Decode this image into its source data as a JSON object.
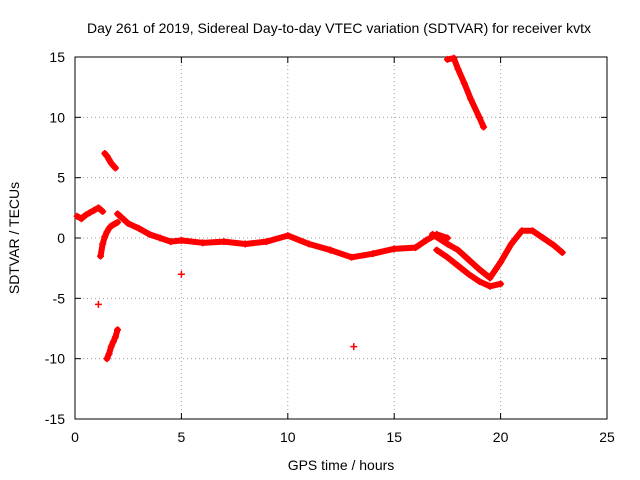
{
  "chart_data": {
    "type": "scatter",
    "title": "Day 261 of 2019, Sidereal Day-to-day VTEC variation (SDTVAR) for receiver kvtx",
    "xlabel": "GPS time / hours",
    "ylabel": "SDTVAR / TECUs",
    "xlim": [
      0,
      25
    ],
    "ylim": [
      -15,
      15
    ],
    "xticks": [
      0,
      5,
      10,
      15,
      20,
      25
    ],
    "yticks": [
      -15,
      -10,
      -5,
      0,
      5,
      10,
      15
    ],
    "xtick_labels": [
      "0",
      "5",
      "10",
      "15",
      "20",
      "25"
    ],
    "ytick_labels": [
      "-15",
      "-10",
      "-5",
      "0",
      "5",
      "10",
      "15"
    ],
    "grid": true,
    "marker": "+",
    "series_color": "#ff0000",
    "series": [
      {
        "name": "seg-early-band",
        "x": [
          0.1,
          0.3,
          0.5,
          0.7,
          0.9,
          1.1,
          1.3
        ],
        "y": [
          1.8,
          1.6,
          1.9,
          2.1,
          2.3,
          2.5,
          2.2
        ]
      },
      {
        "name": "seg-rising-arc",
        "x": [
          1.2,
          1.3,
          1.4,
          1.5,
          1.6,
          1.7,
          1.8,
          1.9,
          2.0
        ],
        "y": [
          -1.5,
          -0.5,
          0.1,
          0.5,
          0.8,
          1.0,
          1.1,
          1.2,
          1.3
        ]
      },
      {
        "name": "seg-upper-spike",
        "x": [
          1.4,
          1.5,
          1.6,
          1.7,
          1.8,
          1.9
        ],
        "y": [
          7.0,
          6.8,
          6.5,
          6.2,
          6.0,
          5.8
        ]
      },
      {
        "name": "seg-lower-spike",
        "x": [
          1.5,
          1.6,
          1.7,
          1.8,
          1.9,
          2.0
        ],
        "y": [
          -10.0,
          -9.6,
          -9.0,
          -8.6,
          -8.2,
          -7.6
        ]
      },
      {
        "name": "seg-morning",
        "x": [
          2.0,
          2.5,
          3.0,
          3.5,
          4.0,
          4.5,
          5.0
        ],
        "y": [
          2.0,
          1.2,
          0.8,
          0.3,
          0.0,
          -0.3,
          -0.2
        ]
      },
      {
        "name": "seg-midday",
        "x": [
          5.0,
          6.0,
          7.0,
          8.0,
          9.0,
          10.0,
          11.0,
          12.0
        ],
        "y": [
          -0.2,
          -0.4,
          -0.3,
          -0.5,
          -0.3,
          0.2,
          -0.5,
          -1.0
        ]
      },
      {
        "name": "seg-afternoon",
        "x": [
          12.0,
          13.0,
          14.0,
          15.0,
          16.0,
          16.5,
          17.0,
          17.5
        ],
        "y": [
          -1.0,
          -1.6,
          -1.3,
          -0.9,
          -0.8,
          -0.2,
          0.3,
          0.0
        ]
      },
      {
        "name": "seg-evening-upper",
        "x": [
          16.8,
          17.5,
          18.0,
          18.5,
          19.0,
          19.5
        ],
        "y": [
          0.3,
          -0.5,
          -1.0,
          -1.8,
          -2.6,
          -3.3
        ]
      },
      {
        "name": "seg-evening-lower",
        "x": [
          17.0,
          17.5,
          18.0,
          18.5,
          19.0,
          19.5,
          20.0
        ],
        "y": [
          -1.0,
          -1.6,
          -2.3,
          -3.0,
          -3.6,
          -4.0,
          -3.8
        ]
      },
      {
        "name": "seg-night",
        "x": [
          19.5,
          20.0,
          20.5,
          21.0,
          21.5,
          22.0,
          22.5,
          22.9
        ],
        "y": [
          -3.3,
          -2.0,
          -0.5,
          0.6,
          0.6,
          0.0,
          -0.6,
          -1.2
        ]
      },
      {
        "name": "seg-high-arc",
        "x": [
          17.5,
          17.8,
          18.0,
          18.3,
          18.6,
          19.0,
          19.2
        ],
        "y": [
          14.8,
          14.9,
          14.0,
          12.8,
          11.5,
          10.0,
          9.2
        ]
      },
      {
        "name": "seg-outliers",
        "x": [
          1.1,
          5.0,
          13.1
        ],
        "y": [
          -5.5,
          -3.0,
          -9.0
        ]
      }
    ]
  }
}
